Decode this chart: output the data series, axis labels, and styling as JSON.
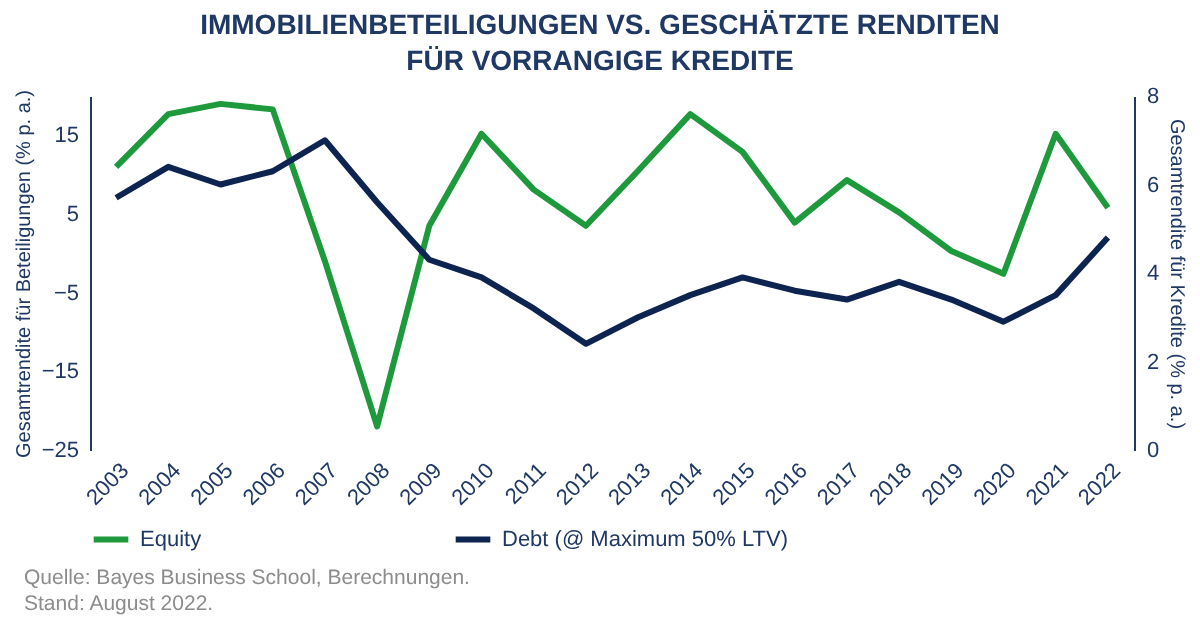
{
  "chart_data": {
    "type": "line",
    "title": "IMMOBILIENBETEILIGUNGEN VS. GESCHÄTZTE RENDITEN FÜR VORRANGIGE KREDITE",
    "ylabel": "Gesamtrendite für Beteiligungen (% p. a.)",
    "y2label": "Gesamtrendite für Kredite (% p. a.)",
    "categories": [
      "2003",
      "2004",
      "2005",
      "2006",
      "2007",
      "2008",
      "2009",
      "2010",
      "2011",
      "2012",
      "2013",
      "2014",
      "2015",
      "2016",
      "2017",
      "2018",
      "2019",
      "2020",
      "2021",
      "2022"
    ],
    "series": [
      {
        "name": "Equity",
        "color": "#1e9a3c",
        "values": [
          11,
          17.7,
          19,
          18.3,
          -1,
          -22,
          3.5,
          15.2,
          8.1,
          3.5,
          10.5,
          17.7,
          12.9,
          3.9,
          9.3,
          5.2,
          0.3,
          -2.6,
          15.2,
          5.8
        ]
      },
      {
        "name": "Debt (@ Maximum 50% LTV)",
        "color": "#0d2350",
        "axis": "y2",
        "values": [
          5.7,
          6.4,
          6.0,
          6.3,
          7.0,
          5.6,
          4.3,
          3.9,
          3.2,
          2.4,
          3.0,
          3.5,
          3.9,
          3.6,
          3.4,
          3.8,
          3.4,
          2.9,
          3.5,
          4.8
        ]
      }
    ],
    "ylim": [
      -25,
      20
    ],
    "yticks": [
      -25,
      -15,
      -5,
      5,
      15
    ],
    "y2lim": [
      0,
      8
    ],
    "y2ticks": [
      0,
      2,
      4,
      6,
      8
    ],
    "grid": false,
    "legend": "bottom",
    "annotations": [
      "Quelle:  Bayes Business School, Berechnungen.",
      "Stand:  August 2022."
    ]
  }
}
